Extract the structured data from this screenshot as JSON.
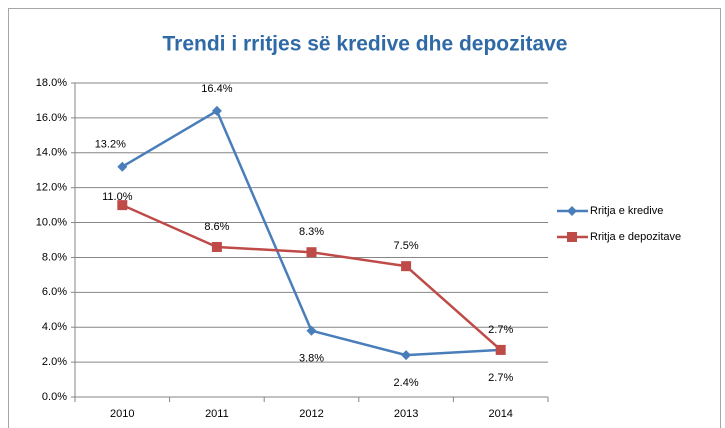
{
  "chart_data": {
    "type": "line",
    "title": "Trendi i rritjes së kredive dhe depozitave",
    "categories": [
      "2010",
      "2011",
      "2012",
      "2013",
      "2014"
    ],
    "series": [
      {
        "name": "Rritja e kredive",
        "color": "#4a7ebb",
        "marker": "diamond",
        "values": [
          13.2,
          16.4,
          3.8,
          2.4,
          2.7
        ],
        "value_labels": [
          "13.2%",
          "16.4%",
          "3.8%",
          "2.4%",
          "2.7%"
        ]
      },
      {
        "name": "Rritja e depozitave",
        "color": "#be4b48",
        "marker": "square",
        "values": [
          11.0,
          8.6,
          8.3,
          7.5,
          2.7
        ],
        "value_labels": [
          "11.0%",
          "8.6%",
          "8.3%",
          "7.5%",
          "2.7%"
        ]
      }
    ],
    "ylim": [
      0,
      18
    ],
    "yticks": [
      {
        "value": 0,
        "label": "0.0%"
      },
      {
        "value": 2,
        "label": "2.0%"
      },
      {
        "value": 4,
        "label": "4.0%"
      },
      {
        "value": 6,
        "label": "6.0%"
      },
      {
        "value": 8,
        "label": "8.0%"
      },
      {
        "value": 10,
        "label": "10.0%"
      },
      {
        "value": 12,
        "label": "12.0%"
      },
      {
        "value": 14,
        "label": "14.0%"
      },
      {
        "value": 16,
        "label": "16.0%"
      },
      {
        "value": 18,
        "label": "18.0%"
      }
    ],
    "grid": true,
    "legend": "right"
  }
}
